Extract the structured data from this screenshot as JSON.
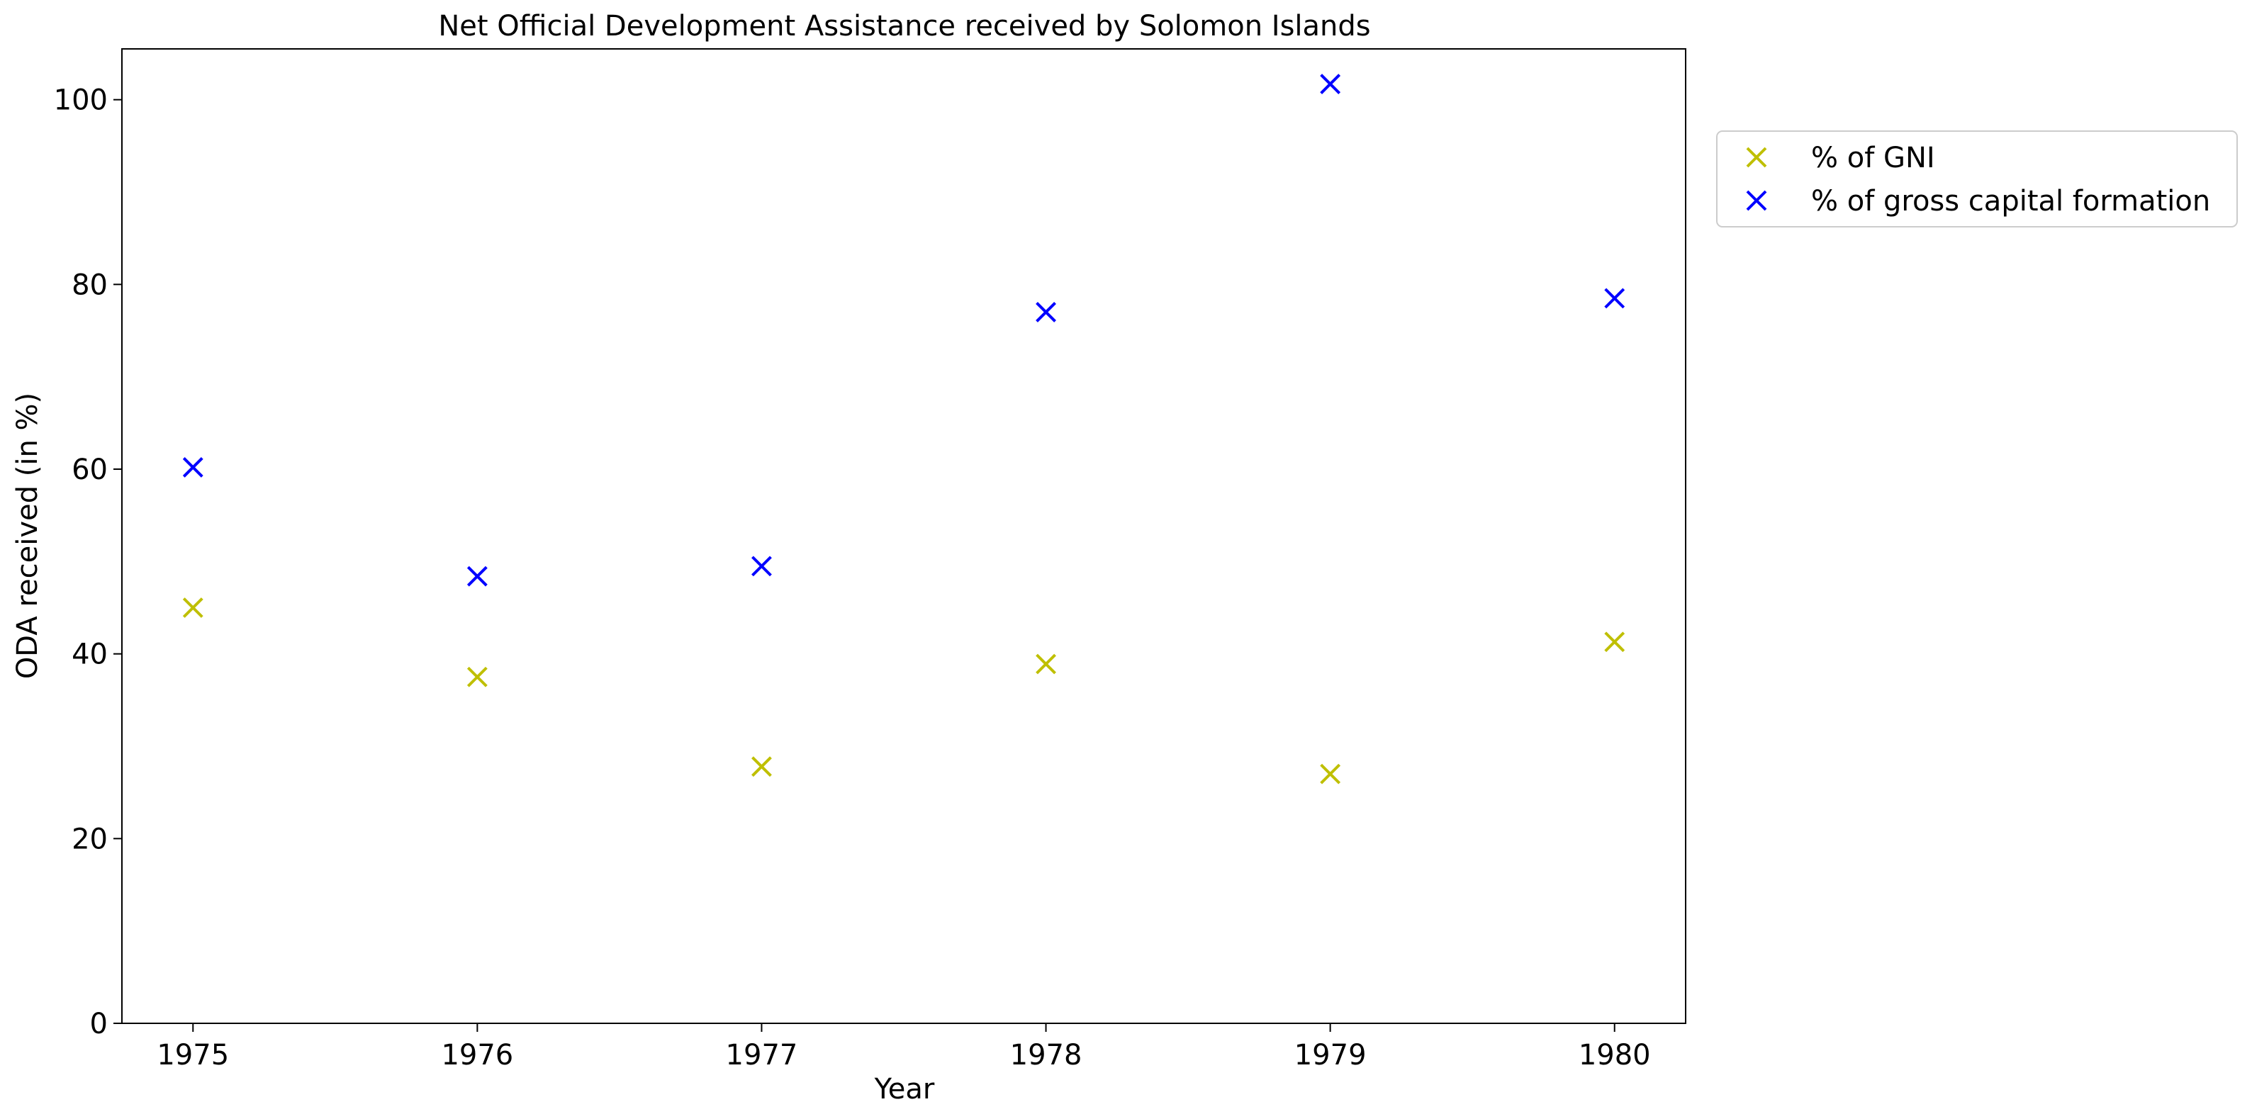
{
  "chart_data": {
    "type": "scatter",
    "title": "Net Official Development Assistance received by Solomon Islands",
    "xlabel": "Year",
    "ylabel": "ODA received (in %)",
    "x": [
      1975,
      1976,
      1977,
      1978,
      1979,
      1980
    ],
    "x_tick_labels": [
      "1975",
      "1976",
      "1977",
      "1978",
      "1979",
      "1980"
    ],
    "xlim": [
      1974.75,
      1980.25
    ],
    "ylim": [
      0,
      105.5
    ],
    "y_ticks": [
      0,
      20,
      40,
      60,
      80,
      100
    ],
    "y_tick_labels": [
      "0",
      "20",
      "40",
      "60",
      "80",
      "100"
    ],
    "grid": false,
    "legend_position": "outside-right-top",
    "series": [
      {
        "name": "% of GNI",
        "color": "#bfbf00",
        "marker": "x",
        "values": [
          45.0,
          37.5,
          27.8,
          38.9,
          27.0,
          41.3
        ]
      },
      {
        "name": "% of gross capital formation",
        "color": "#0000ff",
        "marker": "x",
        "values": [
          60.2,
          48.4,
          49.5,
          77.0,
          101.7,
          78.5
        ]
      }
    ]
  }
}
